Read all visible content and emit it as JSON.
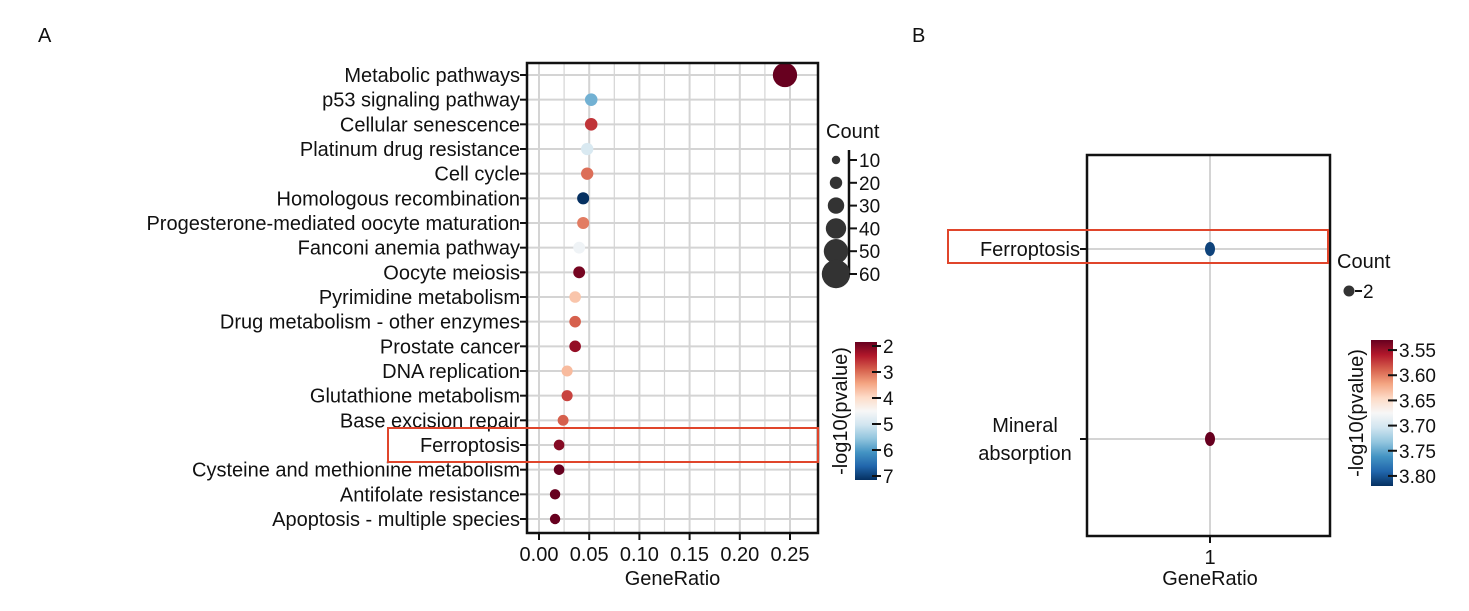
{
  "panels": {
    "a": {
      "letter": "A"
    },
    "b": {
      "letter": "B"
    }
  },
  "chart_data": [
    {
      "type": "scatter",
      "panel": "A",
      "xlabel": "GeneRatio",
      "ylabel": "",
      "xlim": [
        0,
        0.27
      ],
      "xticks": [
        0.0,
        0.05,
        0.1,
        0.15,
        0.2,
        0.25
      ],
      "xtick_labels": [
        "0.00",
        "0.05",
        "0.10",
        "0.15",
        "0.20",
        "0.25"
      ],
      "grid": true,
      "categories": [
        "Metabolic pathways",
        "p53 signaling pathway",
        "Cellular senescence",
        "Platinum drug resistance",
        "Cell cycle",
        "Homologous recombination",
        "Progesterone-mediated oocyte maturation",
        "Fanconi anemia pathway",
        "Oocyte meiosis",
        "Pyrimidine metabolism",
        "Drug metabolism - other enzymes",
        "Prostate cancer",
        "DNA replication",
        "Glutathione metabolism",
        "Base excision repair",
        "Ferroptosis",
        "Cysteine and methionine metabolism",
        "Antifolate resistance",
        "Apoptosis - multiple species"
      ],
      "gene_ratio": [
        0.245,
        0.052,
        0.052,
        0.048,
        0.048,
        0.044,
        0.044,
        0.04,
        0.04,
        0.036,
        0.036,
        0.036,
        0.028,
        0.028,
        0.024,
        0.02,
        0.02,
        0.016,
        0.016
      ],
      "neg_log10_pvalue": [
        2.0,
        5.7,
        2.7,
        4.9,
        3.1,
        7.0,
        3.2,
        4.6,
        2.1,
        3.8,
        3.0,
        2.3,
        3.7,
        2.8,
        3.0,
        2.2,
        2.0,
        1.9,
        1.9
      ],
      "count": [
        62,
        13,
        13,
        12,
        12,
        11,
        11,
        10,
        10,
        9,
        9,
        9,
        7,
        7,
        6,
        5,
        5,
        4,
        4
      ],
      "highlight": "Ferroptosis",
      "legend": {
        "size_title": "Count",
        "size_values": [
          10,
          20,
          30,
          40,
          50,
          60
        ],
        "color_title": "-log10(pvalue)",
        "color_ticks": [
          2,
          3,
          4,
          5,
          6,
          7
        ],
        "color_range": [
          2,
          7
        ],
        "placement": "right"
      }
    },
    {
      "type": "scatter",
      "panel": "B",
      "xlabel": "GeneRatio",
      "ylabel": "",
      "xticks": [
        1
      ],
      "xtick_labels": [
        "1"
      ],
      "grid": true,
      "categories": [
        "Ferroptosis",
        "Mineral absorption"
      ],
      "category_labels": [
        [
          "Ferroptosis"
        ],
        [
          "Mineral",
          "absorption"
        ]
      ],
      "gene_ratio": [
        1,
        1
      ],
      "neg_log10_pvalue": [
        3.81,
        3.53
      ],
      "count": [
        2,
        2
      ],
      "highlight": "Ferroptosis",
      "legend": {
        "size_title": "Count",
        "size_values": [
          2
        ],
        "color_title": "-log10(pvalue)",
        "color_ticks": [
          "3.55",
          "3.60",
          "3.65",
          "3.70",
          "3.75",
          "3.80"
        ],
        "color_range": [
          3.53,
          3.82
        ],
        "placement": "right"
      }
    }
  ],
  "colors": {
    "low_pvalue_end": "#67001f",
    "high_pvalue_end": "#053061",
    "highlight_box": "#e0452b",
    "grid": "#d4d4d4",
    "axis": "#111111",
    "size_legend_dot": "#333333"
  }
}
